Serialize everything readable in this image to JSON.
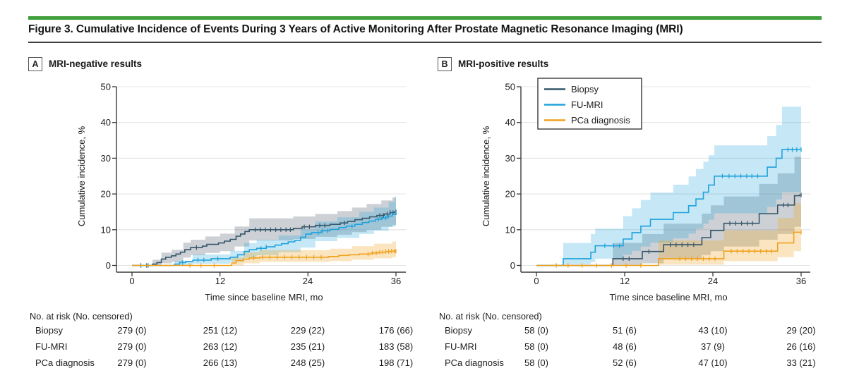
{
  "figure": {
    "title": "Figure 3. Cumulative Incidence of Events During 3 Years of Active Monitoring After Prostate Magnetic Resonance Imaging (MRI)",
    "accent_green": "#3fa03c",
    "rule_color": "#404040"
  },
  "panels": [
    {
      "label": "A",
      "header": "MRI-negative results"
    },
    {
      "label": "B",
      "header": "MRI-positive results"
    }
  ],
  "colors": {
    "biopsy": "#35566b",
    "fu_mri": "#1fa2db",
    "pca_diagnosis": "#f0a11c",
    "gridline": "#e3e4e5",
    "axis": "#3a3a3a"
  },
  "chart_data": [
    {
      "type": "line",
      "subtype": "cumulative-incidence-step",
      "panel": "A",
      "title": "MRI-negative results",
      "xlabel": "Time since baseline MRI, mo",
      "ylabel": "Cumulative incidence, %",
      "xlim": [
        0,
        36
      ],
      "ylim": [
        0,
        50
      ],
      "xticks": [
        0,
        12,
        24,
        36
      ],
      "yticks": [
        0,
        10,
        20,
        30,
        40,
        50
      ],
      "grid": true,
      "legend_position": "none",
      "series": [
        {
          "name": "Biopsy",
          "color": "#35566b",
          "band_color": "rgba(88,104,116,0.30)",
          "steps": [
            [
              0,
              0
            ],
            [
              2.8,
              0.4
            ],
            [
              3.4,
              0.8
            ],
            [
              4,
              1.8
            ],
            [
              4.6,
              2.3
            ],
            [
              5.4,
              2.7
            ],
            [
              6,
              3.2
            ],
            [
              6.6,
              3.7
            ],
            [
              7.2,
              4.4
            ],
            [
              8,
              5
            ],
            [
              9.6,
              5.4
            ],
            [
              10.2,
              5.9
            ],
            [
              11.8,
              6.3
            ],
            [
              12.6,
              6.8
            ],
            [
              13.4,
              7.3
            ],
            [
              14.2,
              8.2
            ],
            [
              14.8,
              8.8
            ],
            [
              15.4,
              9.5
            ],
            [
              16,
              10
            ],
            [
              22,
              10.4
            ],
            [
              23.2,
              10.8
            ],
            [
              25,
              11.2
            ],
            [
              27,
              11.5
            ],
            [
              28.4,
              11.9
            ],
            [
              29.4,
              12.3
            ],
            [
              30.4,
              12.8
            ],
            [
              31.4,
              13.2
            ],
            [
              32.4,
              13.6
            ],
            [
              33.4,
              14
            ],
            [
              34.4,
              14.4
            ],
            [
              35.2,
              14.8
            ],
            [
              35.8,
              15
            ]
          ],
          "band": [
            [
              2.8,
              0,
              1.6
            ],
            [
              4,
              0.6,
              3.6
            ],
            [
              5.4,
              1,
              4.4
            ],
            [
              7,
              2.2,
              6.4
            ],
            [
              8,
              2.9,
              7.2
            ],
            [
              10,
              3.5,
              8.1
            ],
            [
              12,
              4,
              8.9
            ],
            [
              14,
              5.3,
              10.9
            ],
            [
              16,
              7,
              13.2
            ],
            [
              22,
              7.4,
              13.7
            ],
            [
              25,
              8,
              14.4
            ],
            [
              28,
              8.6,
              15.2
            ],
            [
              30,
              9.3,
              16.2
            ],
            [
              32,
              10,
              17.2
            ],
            [
              34,
              10.8,
              18.2
            ],
            [
              35.5,
              11.3,
              19
            ]
          ],
          "censor_ticks": [
            1.2,
            2,
            8.8,
            16.8,
            17.5,
            18.2,
            18.9,
            19.6,
            20.3,
            21,
            21.6,
            23.5,
            24.2,
            25.6,
            26.3,
            29,
            33.8,
            34.3,
            34.8,
            35.2,
            35.6,
            36
          ]
        },
        {
          "name": "FU-MRI",
          "color": "#1fa2db",
          "band_color": "rgba(31,162,219,0.26)",
          "steps": [
            [
              0,
              0
            ],
            [
              5.8,
              0.4
            ],
            [
              6.5,
              0.8
            ],
            [
              7.3,
              1.1
            ],
            [
              8.3,
              1.5
            ],
            [
              10.8,
              1.9
            ],
            [
              13.4,
              2.3
            ],
            [
              14.4,
              3
            ],
            [
              15.3,
              3.9
            ],
            [
              16,
              4.4
            ],
            [
              17,
              4.8
            ],
            [
              18.3,
              5.2
            ],
            [
              19.5,
              5.7
            ],
            [
              20.4,
              6.1
            ],
            [
              21.3,
              6.6
            ],
            [
              22.2,
              7
            ],
            [
              23,
              7.9
            ],
            [
              23.7,
              8.8
            ],
            [
              24.5,
              9.2
            ],
            [
              25.8,
              9.7
            ],
            [
              27,
              10.1
            ],
            [
              28.2,
              10.6
            ],
            [
              29.2,
              11
            ],
            [
              30.4,
              11.5
            ],
            [
              31.4,
              12
            ],
            [
              32.3,
              12.4
            ],
            [
              33.2,
              12.9
            ],
            [
              34,
              13.3
            ],
            [
              34.8,
              13.8
            ],
            [
              35.5,
              14.3
            ],
            [
              36,
              14.7
            ]
          ],
          "band": [
            [
              5.8,
              0,
              1.3
            ],
            [
              8.3,
              0.5,
              3.1
            ],
            [
              13.4,
              1,
              4.1
            ],
            [
              15.3,
              2.1,
              6.3
            ],
            [
              17,
              2.9,
              7.2
            ],
            [
              20,
              3.7,
              8.4
            ],
            [
              23,
              5,
              10.2
            ],
            [
              25,
              6.8,
              12.3
            ],
            [
              28,
              7.7,
              13.5
            ],
            [
              31,
              8.8,
              15
            ],
            [
              33,
              9.7,
              16.2
            ],
            [
              35,
              10.8,
              17.8
            ],
            [
              35.8,
              11.2,
              19.3
            ]
          ],
          "censor_ticks": [
            1.2,
            2.2,
            6.9,
            9,
            9.8,
            11.7,
            17.6,
            18.3,
            25.4,
            26,
            26.7,
            30,
            33.6,
            34.1,
            34.6,
            35,
            35.5,
            36
          ]
        },
        {
          "name": "PCa diagnosis",
          "color": "#f0a11c",
          "band_color": "rgba(240,161,28,0.28)",
          "steps": [
            [
              0,
              0
            ],
            [
              13.6,
              0.7
            ],
            [
              14.2,
              1.4
            ],
            [
              15.2,
              1.8
            ],
            [
              16,
              2.1
            ],
            [
              17.4,
              2.3
            ],
            [
              26.8,
              2.5
            ],
            [
              28.2,
              2.8
            ],
            [
              29.6,
              3
            ],
            [
              31,
              3.2
            ],
            [
              32.6,
              3.5
            ],
            [
              33.6,
              3.7
            ],
            [
              34.6,
              3.9
            ],
            [
              35.4,
              4
            ]
          ],
          "band": [
            [
              13.6,
              0,
              2.2
            ],
            [
              15.2,
              0.6,
              3.7
            ],
            [
              17.4,
              1,
              4.3
            ],
            [
              27,
              1.2,
              4.7
            ],
            [
              30,
              1.6,
              5.4
            ],
            [
              33,
              2,
              6.1
            ],
            [
              35.5,
              2.3,
              6.7
            ]
          ],
          "censor_ticks": [
            7.9,
            9.4,
            11.2,
            16.6,
            17.8,
            18.8,
            19.8,
            20.8,
            21.8,
            22.8,
            23.8,
            24.8,
            25.8,
            32.2,
            32.8,
            33.3,
            33.8,
            34.2,
            34.6,
            35,
            35.4,
            35.8,
            36
          ]
        }
      ],
      "risk_table": {
        "header": "No. at risk (No. censored)",
        "rows": [
          {
            "label": "Biopsy",
            "values": [
              "279 (0)",
              "251 (12)",
              "229 (22)",
              "176 (66)"
            ]
          },
          {
            "label": "FU-MRI",
            "values": [
              "279 (0)",
              "263 (12)",
              "235 (21)",
              "183 (58)"
            ]
          },
          {
            "label": "PCa diagnosis",
            "values": [
              "279 (0)",
              "266 (13)",
              "248 (25)",
              "198 (71)"
            ]
          }
        ]
      }
    },
    {
      "type": "line",
      "subtype": "cumulative-incidence-step",
      "panel": "B",
      "title": "MRI-positive results",
      "xlabel": "Time since baseline MRI, mo",
      "ylabel": "Cumulative incidence, %",
      "xlim": [
        0,
        36
      ],
      "ylim": [
        0,
        50
      ],
      "xticks": [
        0,
        12,
        24,
        36
      ],
      "yticks": [
        0,
        10,
        20,
        30,
        40,
        50
      ],
      "grid": true,
      "legend_position": "top-left-inset",
      "legend_entries": [
        "Biopsy",
        "FU-MRI",
        "PCa diagnosis"
      ],
      "series": [
        {
          "name": "Biopsy",
          "color": "#35566b",
          "band_color": "rgba(88,104,116,0.30)",
          "steps": [
            [
              0,
              0
            ],
            [
              10.4,
              1.9
            ],
            [
              14.4,
              3.9
            ],
            [
              17.3,
              5.8
            ],
            [
              22.5,
              7.8
            ],
            [
              23.7,
              9.8
            ],
            [
              25.5,
              11.8
            ],
            [
              30.3,
              14.5
            ],
            [
              32.8,
              16.9
            ],
            [
              35.1,
              19.5
            ],
            [
              35.8,
              19.7
            ]
          ],
          "band": [
            [
              10.4,
              0,
              6.3
            ],
            [
              14.4,
              0.6,
              8.8
            ],
            [
              17.3,
              1.7,
              11.7
            ],
            [
              22.5,
              2.9,
              14.5
            ],
            [
              23.7,
              4,
              16.8
            ],
            [
              25.5,
              5.3,
              19.3
            ],
            [
              30.3,
              7.2,
              22.8
            ],
            [
              32.8,
              8.8,
              25.8
            ],
            [
              35.1,
              10.8,
              30.4
            ]
          ],
          "censor_ticks": [
            11.8,
            12.6,
            15.3,
            18.2,
            19,
            19.8,
            20.6,
            21.4,
            26.3,
            27.1,
            27.9,
            28.7,
            29.4,
            33.6,
            34.2,
            36
          ]
        },
        {
          "name": "FU-MRI",
          "color": "#1fa2db",
          "band_color": "rgba(31,162,219,0.26)",
          "steps": [
            [
              0,
              0
            ],
            [
              3.65,
              1.9
            ],
            [
              7.4,
              3.7
            ],
            [
              8,
              5.5
            ],
            [
              11.8,
              7.4
            ],
            [
              13,
              9.2
            ],
            [
              14.2,
              11
            ],
            [
              15.5,
              12.9
            ],
            [
              18.6,
              14.8
            ],
            [
              20.7,
              16.7
            ],
            [
              21.7,
              18.6
            ],
            [
              22.7,
              20.5
            ],
            [
              23.4,
              22.5
            ],
            [
              24.2,
              25
            ],
            [
              31.4,
              27.5
            ],
            [
              32.6,
              30
            ],
            [
              33.4,
              32.4
            ]
          ],
          "band": [
            [
              3.65,
              0.3,
              6.3
            ],
            [
              7.4,
              0.9,
              8.8
            ],
            [
              8,
              1.9,
              10.3
            ],
            [
              11.8,
              3,
              13.8
            ],
            [
              13,
              4.1,
              16
            ],
            [
              14.2,
              5.3,
              18.3
            ],
            [
              15.5,
              6.4,
              20.4
            ],
            [
              18.6,
              7.6,
              22.6
            ],
            [
              20.7,
              8.9,
              24.9
            ],
            [
              21.7,
              10.3,
              27
            ],
            [
              22.7,
              11.7,
              29
            ],
            [
              23.4,
              12.8,
              30.8
            ],
            [
              24.2,
              14.6,
              33.6
            ],
            [
              31.4,
              16.4,
              36.2
            ],
            [
              32.6,
              18.5,
              39.3
            ],
            [
              33.4,
              20.5,
              44.4
            ]
          ],
          "censor_ticks": [
            9.3,
            10.5,
            11.3,
            25.3,
            26.2,
            27,
            27.8,
            28.6,
            29.3,
            30.1,
            34.2,
            34.8,
            35.4,
            36
          ]
        },
        {
          "name": "PCa diagnosis",
          "color": "#f0a11c",
          "band_color": "rgba(240,161,28,0.28)",
          "steps": [
            [
              0,
              0
            ],
            [
              16.6,
              1.9
            ],
            [
              25.5,
              4
            ],
            [
              32.8,
              6.3
            ],
            [
              35,
              9.3
            ]
          ],
          "band": [
            [
              16.6,
              0.2,
              7
            ],
            [
              25.5,
              1.2,
              9.8
            ],
            [
              32.8,
              2.3,
              13.3
            ],
            [
              35,
              4,
              17.4
            ]
          ],
          "censor_ticks": [
            2.7,
            4.3,
            6.2,
            8.2,
            10.2,
            12.2,
            14.2,
            19.5,
            20.3,
            21.1,
            21.9,
            22.7,
            23.5,
            24.3,
            26.5,
            27.3,
            28.1,
            28.9,
            29.7,
            30.5,
            31.3,
            32,
            36
          ]
        }
      ],
      "risk_table": {
        "header": "No. at risk (No. censored)",
        "rows": [
          {
            "label": "Biopsy",
            "values": [
              "58 (0)",
              "51 (6)",
              "43 (10)",
              "29 (20)"
            ]
          },
          {
            "label": "FU-MRI",
            "values": [
              "58 (0)",
              "48 (6)",
              "37 (9)",
              "26 (16)"
            ]
          },
          {
            "label": "PCa diagnosis",
            "values": [
              "58 (0)",
              "52 (6)",
              "47 (10)",
              "33 (21)"
            ]
          }
        ]
      }
    }
  ]
}
